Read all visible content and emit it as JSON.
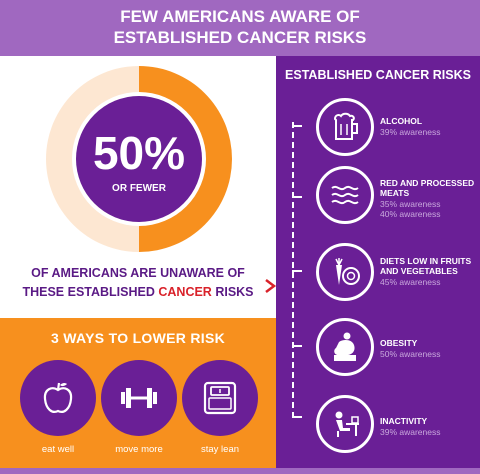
{
  "header": {
    "line1": "FEW AMERICANS AWARE OF",
    "line2": "ESTABLISHED CANCER RISKS"
  },
  "stat": {
    "value": "50%",
    "sub": "OR FEWER",
    "ring_fraction": 0.5,
    "text_before": "OF AMERICANS ARE UNAWARE OF",
    "text_line2_start": "THESE ESTABLISHED ",
    "text_highlight": "CANCER",
    "text_line2_end": " RISKS"
  },
  "ways": {
    "title": "3 WAYS TO LOWER RISK",
    "items": [
      {
        "label": "eat well",
        "icon": "apple-icon"
      },
      {
        "label": "move more",
        "icon": "dumbbell-icon"
      },
      {
        "label": "stay lean",
        "icon": "scale-icon"
      }
    ]
  },
  "risks": {
    "title": "ESTABLISHED CANCER RISKS",
    "items": [
      {
        "name": "ALCOHOL",
        "name2": "",
        "aw1": "39% awareness",
        "aw2": "",
        "icon": "beer-mug-icon"
      },
      {
        "name": "RED AND PROCESSED",
        "name2": "MEATS",
        "aw1": "35% awareness",
        "aw2": "40% awareness",
        "icon": "bacon-icon"
      },
      {
        "name": "DIETS LOW IN FRUITS",
        "name2": "AND VEGETABLES",
        "aw1": "45% awareness",
        "aw2": "",
        "icon": "produce-icon"
      },
      {
        "name": "OBESITY",
        "name2": "",
        "aw1": "50% awareness",
        "aw2": "",
        "icon": "person-sitting-icon"
      },
      {
        "name": "INACTIVITY",
        "name2": "",
        "aw1": "39% awareness",
        "aw2": "",
        "icon": "person-at-desk-icon"
      }
    ]
  },
  "colors": {
    "purple": "#6a1f96",
    "light_purple": "#a068c0",
    "orange": "#f7901e",
    "red": "#d9222a"
  }
}
